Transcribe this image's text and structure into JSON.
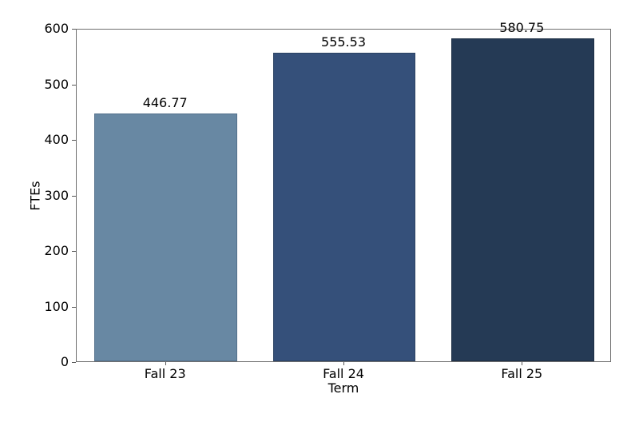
{
  "chart_data": {
    "type": "bar",
    "title": "",
    "xlabel": "Term",
    "ylabel": "FTEs",
    "categories": [
      "Fall 23",
      "Fall 24",
      "Fall 25"
    ],
    "values": [
      446.77,
      555.53,
      580.75
    ],
    "value_labels": [
      "446.77",
      "555.53",
      "580.75"
    ],
    "bar_colors": [
      "#6888a3",
      "#35507a",
      "#253a55"
    ],
    "bar_edge_colors": [
      "#54718c",
      "#2b4263",
      "#1d2f45"
    ],
    "ylim": [
      0,
      600
    ],
    "yticks": [
      0,
      100,
      200,
      300,
      400,
      500,
      600
    ],
    "bar_width_fraction": 0.8,
    "grid": false,
    "legend": null,
    "background_color": "#ffffff",
    "spine_color": "#6f6f6f",
    "tick_color": "#555555",
    "text_color": "#000000"
  }
}
